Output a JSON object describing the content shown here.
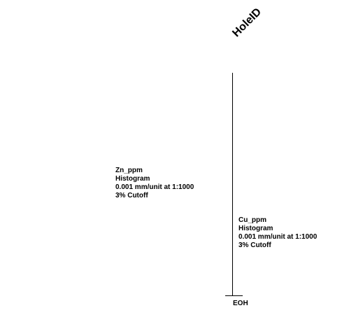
{
  "hole": {
    "title": "HoleID",
    "end_label": "EOH"
  },
  "tracks": [
    {
      "name": "Zn_ppm",
      "type": "Histogram",
      "scale": "0.001 mm/unit at 1:1000",
      "cutoff": "3% Cutoff"
    },
    {
      "name": "Cu_ppm",
      "type": "Histogram",
      "scale": "0.001 mm/unit at 1:1000",
      "cutoff": "3% Cutoff"
    }
  ]
}
